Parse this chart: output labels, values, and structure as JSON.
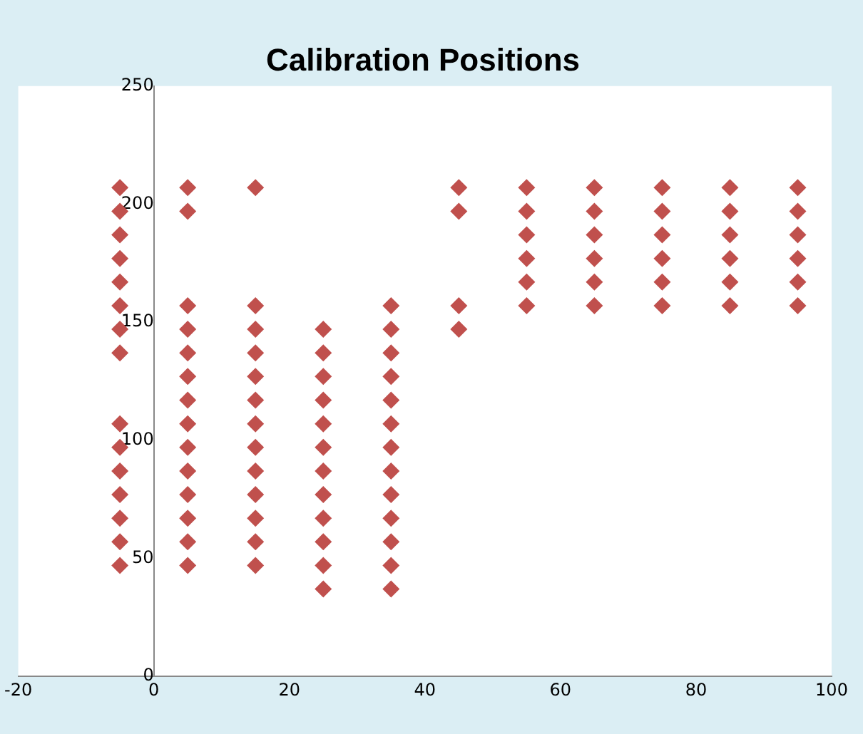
{
  "chart_data": {
    "type": "scatter",
    "title": "Calibration Positions",
    "x": [
      -5,
      -5,
      -5,
      -5,
      -5,
      -5,
      -5,
      -5,
      -5,
      -5,
      -5,
      -5,
      -5,
      -5,
      -5,
      5,
      5,
      5,
      5,
      5,
      5,
      5,
      5,
      5,
      5,
      5,
      5,
      5,
      5,
      15,
      15,
      15,
      15,
      15,
      15,
      15,
      15,
      15,
      15,
      15,
      15,
      15,
      25,
      25,
      25,
      25,
      25,
      25,
      25,
      25,
      25,
      25,
      25,
      25,
      35,
      35,
      35,
      35,
      35,
      35,
      35,
      35,
      35,
      35,
      35,
      35,
      35,
      45,
      45,
      45,
      45,
      55,
      55,
      55,
      55,
      55,
      55,
      65,
      65,
      65,
      65,
      65,
      65,
      75,
      75,
      75,
      75,
      75,
      75,
      85,
      85,
      85,
      85,
      85,
      85,
      95,
      95,
      95,
      95,
      95,
      95
    ],
    "series": [
      {
        "color": "#c0504d",
        "values": [
          207,
          197,
          187,
          177,
          167,
          157,
          147,
          137,
          107,
          97,
          87,
          77,
          67,
          57,
          47,
          207,
          197,
          157,
          147,
          137,
          127,
          117,
          107,
          97,
          87,
          77,
          67,
          57,
          47,
          207,
          157,
          147,
          137,
          127,
          117,
          107,
          97,
          87,
          77,
          67,
          57,
          47,
          147,
          137,
          127,
          117,
          107,
          97,
          87,
          77,
          67,
          57,
          47,
          37,
          157,
          147,
          137,
          127,
          117,
          107,
          97,
          87,
          77,
          67,
          57,
          47,
          37,
          207,
          197,
          157,
          147,
          207,
          197,
          187,
          177,
          167,
          157,
          207,
          197,
          187,
          177,
          167,
          157,
          207,
          197,
          187,
          177,
          167,
          157,
          207,
          197,
          187,
          177,
          167,
          157,
          207,
          197,
          187,
          177,
          167,
          157
        ]
      }
    ],
    "xlim": [
      -20,
      100
    ],
    "xticks": [
      -20,
      0,
      20,
      40,
      60,
      80,
      100
    ],
    "ylim": [
      0,
      250
    ],
    "yticks": [
      0,
      50,
      100,
      150,
      200,
      250
    ],
    "grid": false,
    "legend": false,
    "marker": "diamond"
  }
}
